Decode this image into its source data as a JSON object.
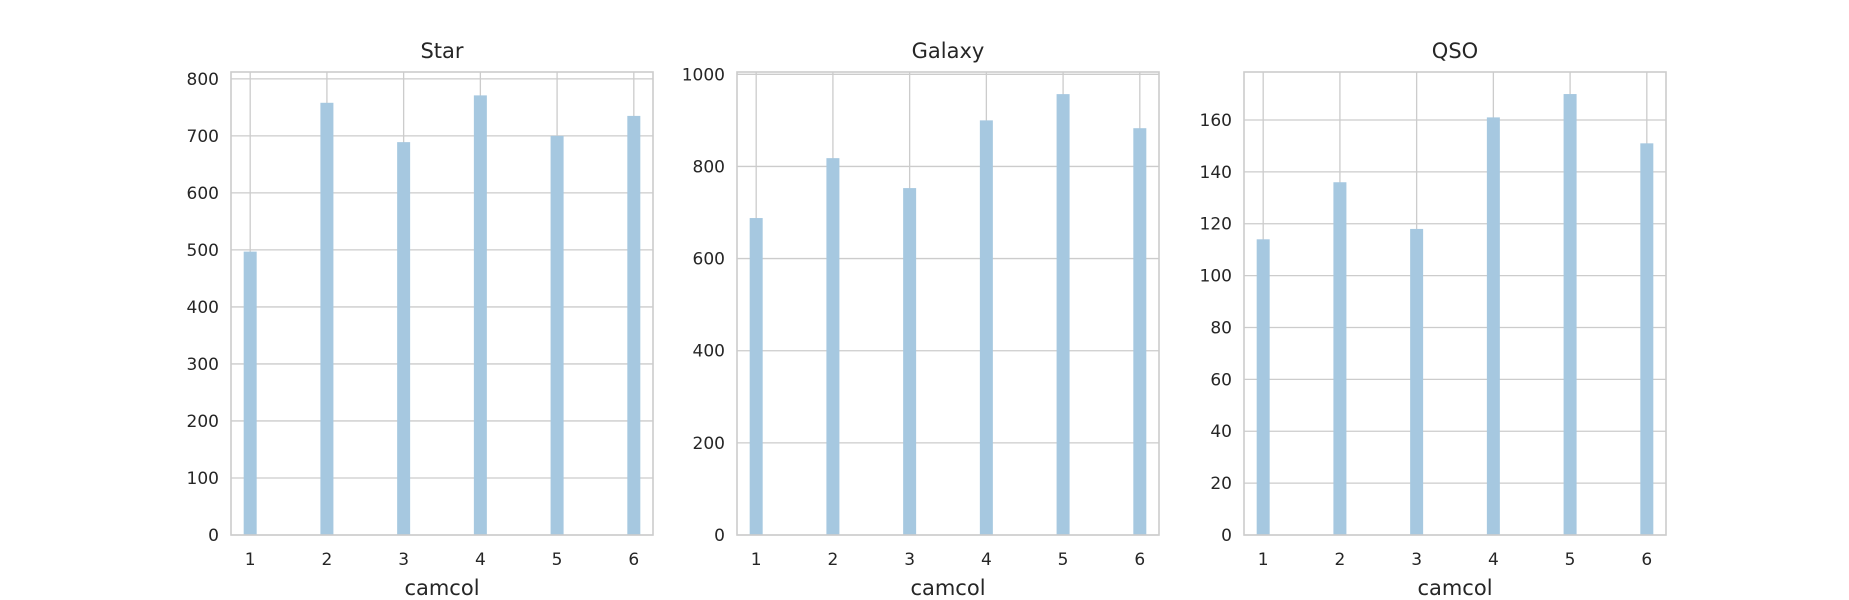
{
  "colors": {
    "bar": "#a6c8e0",
    "grid": "#cccccc",
    "frame": "#cccccc",
    "text": "#262626"
  },
  "chart_data": [
    {
      "type": "bar",
      "title": "Star",
      "xlabel": "camcol",
      "ylabel": "",
      "categories": [
        1,
        2,
        3,
        4,
        5,
        6
      ],
      "values": [
        497,
        758,
        689,
        771,
        700,
        735
      ],
      "ylim": [
        0,
        812
      ],
      "xlim": [
        0.75,
        6.25
      ],
      "xticks": [
        1,
        2,
        3,
        4,
        5,
        6
      ],
      "yticks": [
        0,
        100,
        200,
        300,
        400,
        500,
        600,
        700,
        800
      ],
      "grid": true
    },
    {
      "type": "bar",
      "title": "Galaxy",
      "xlabel": "camcol",
      "ylabel": "",
      "categories": [
        1,
        2,
        3,
        4,
        5,
        6
      ],
      "values": [
        688,
        818,
        753,
        900,
        957,
        883
      ],
      "ylim": [
        0,
        1005
      ],
      "xlim": [
        0.75,
        6.25
      ],
      "xticks": [
        1,
        2,
        3,
        4,
        5,
        6
      ],
      "yticks": [
        0,
        200,
        400,
        600,
        800,
        1000
      ],
      "grid": true
    },
    {
      "type": "bar",
      "title": "QSO",
      "xlabel": "camcol",
      "ylabel": "",
      "categories": [
        1,
        2,
        3,
        4,
        5,
        6
      ],
      "values": [
        114,
        136,
        118,
        161,
        170,
        151
      ],
      "ylim": [
        0,
        178.5
      ],
      "xlim": [
        0.75,
        6.25
      ],
      "xticks": [
        1,
        2,
        3,
        4,
        5,
        6
      ],
      "yticks": [
        0,
        20,
        40,
        60,
        80,
        100,
        120,
        140,
        160
      ],
      "grid": true
    }
  ]
}
